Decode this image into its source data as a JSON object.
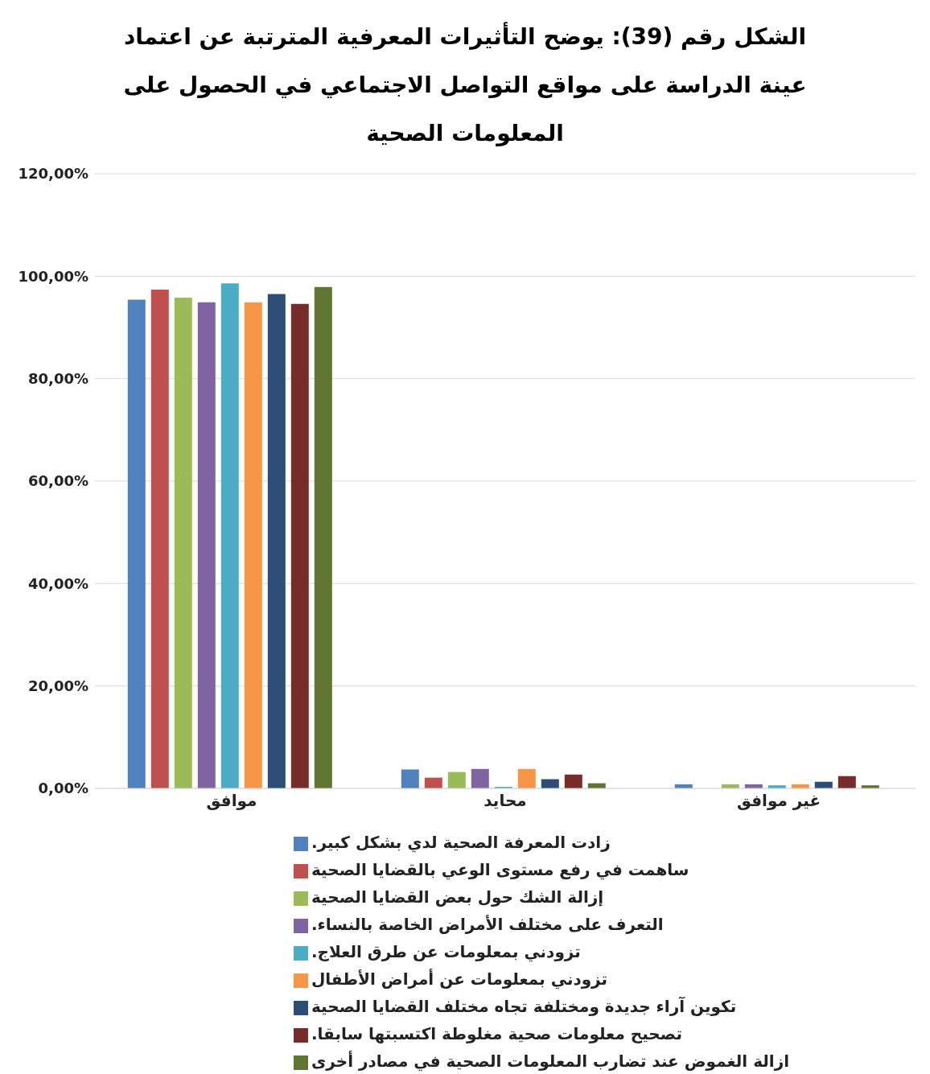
{
  "chart_data": {
    "type": "bar",
    "title": "الشكل رقم (39): يوضح التأثيرات المعرفية المترتبة عن اعتماد عينة الدراسة على مواقع التواصل الاجتماعي في الحصول على المعلومات الصحية",
    "categories": [
      "موافق",
      "محايد",
      "غير موافق"
    ],
    "series": [
      {
        "name": "زادت المعرفة الصحية لدي بشكل كبير.",
        "color": "#4f81bd",
        "values": [
          95.4,
          3.7,
          0.8
        ]
      },
      {
        "name": "ساهمت في رفع مستوى الوعي بالقضايا الصحية",
        "color": "#c0504d",
        "values": [
          97.4,
          2.1,
          0
        ]
      },
      {
        "name": "إزالة الشك حول بعض القضايا الصحية",
        "color": "#9bbb59",
        "values": [
          95.8,
          3.2,
          0.8
        ]
      },
      {
        "name": "التعرف على مختلف الأمراض الخاصة بالنساء.",
        "color": "#8064a2",
        "values": [
          94.9,
          3.8,
          0.8
        ]
      },
      {
        "name": "تزودني بمعلومات عن طرق العلاج.",
        "color": "#4bacc6",
        "values": [
          98.6,
          0.3,
          0.6
        ]
      },
      {
        "name": "تزودني بمعلومات عن أمراض الأطفال",
        "color": "#f79646",
        "values": [
          94.9,
          3.8,
          0.8
        ]
      },
      {
        "name": "تكوين آراء جديدة ومختلفة تجاه مختلف القضايا الصحية",
        "color": "#2c4d75",
        "values": [
          96.5,
          1.8,
          1.3
        ]
      },
      {
        "name": "تصحيح معلومات صحية مغلوطة اكتسبتها سابقا.",
        "color": "#772c2a",
        "values": [
          94.6,
          2.7,
          2.4
        ]
      },
      {
        "name": "ازالة الغموض عند تضارب المعلومات الصحية في مصادر أخرى",
        "color": "#5f7530",
        "values": [
          97.9,
          1.0,
          0.6
        ]
      }
    ],
    "ylim": [
      0,
      120
    ],
    "yticks": [
      {
        "value": 0,
        "label": "0,00%"
      },
      {
        "value": 20,
        "label": "20,00%"
      },
      {
        "value": 40,
        "label": "40,00%"
      },
      {
        "value": 60,
        "label": "60,00%"
      },
      {
        "value": 80,
        "label": "80,00%"
      },
      {
        "value": 100,
        "label": "100,00%"
      },
      {
        "value": 120,
        "label": "120,00%"
      }
    ],
    "grid": "y",
    "legend": "bottom"
  }
}
